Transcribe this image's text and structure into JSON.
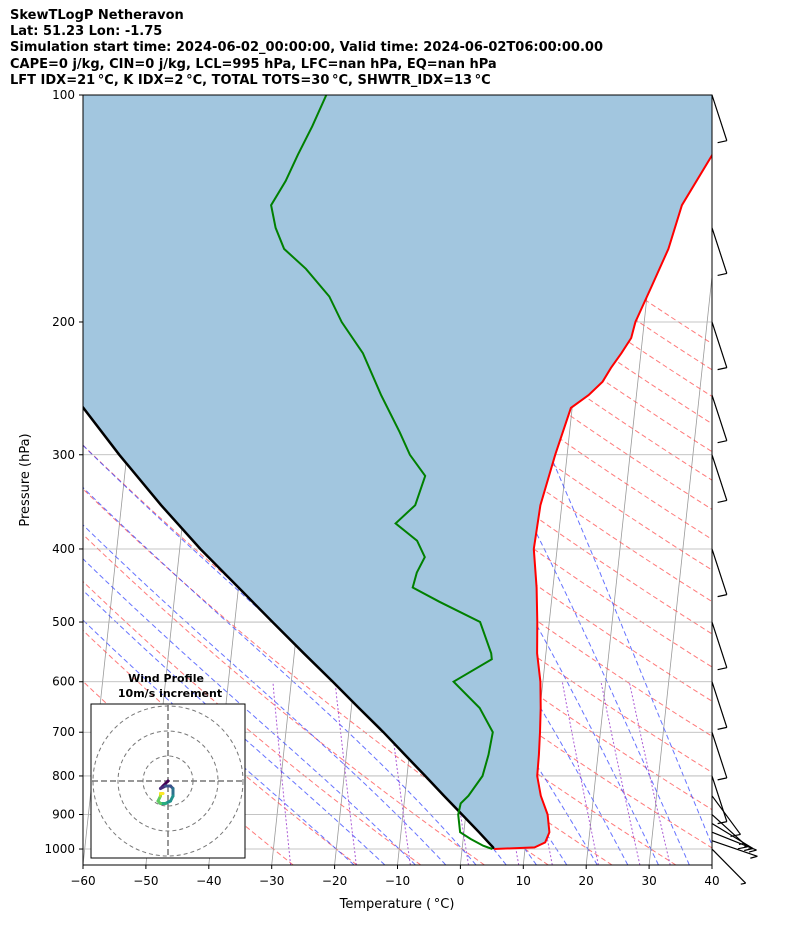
{
  "header": {
    "line1": "SkewTLogP Netheravon",
    "line2": "Lat: 51.23   Lon: -1.75",
    "line3": "Simulation start time: 2024-06-02_00:00:00, Valid time: 2024-06-02T06:00:00.00",
    "line4": "CAPE=0 j/kg, CIN=0 j/kg, LCL=995 hPa, LFC=nan hPa, EQ=nan hPa",
    "line5": "LFT IDX=21 °C, K IDX=2 °C, TOTAL TOTS=30 °C, SHWTR_IDX=13 °C"
  },
  "colors": {
    "temperature": "#ff0000",
    "dewpoint": "#008000",
    "parcel": "#000000",
    "fill": "#a2c6df",
    "dry_adiabat": "#ff4d4d",
    "moist_adiabat": "#3344ff",
    "mixing_ratio": "#9933cc",
    "isotherm": "#9a9a9a"
  },
  "chart_data": {
    "type": "line",
    "xlabel": "Temperature ( °C)",
    "ylabel": "Pressure (hPa)",
    "xlim": [
      -60,
      40
    ],
    "ylim": [
      1050,
      100
    ],
    "yscale": "log",
    "grid": true,
    "xticks": [
      "−60",
      "−50",
      "−40",
      "−30",
      "−20",
      "−10",
      "0",
      "10",
      "20",
      "30",
      "40"
    ],
    "yticks": [
      "100",
      "200",
      "300",
      "400",
      "500",
      "600",
      "700",
      "800",
      "900",
      "1000"
    ],
    "series": [
      {
        "role": "temperature",
        "points": [
          [
            1000,
            5.1
          ],
          [
            995,
            11.5
          ],
          [
            980,
            13.1
          ],
          [
            950,
            13.6
          ],
          [
            900,
            13.0
          ],
          [
            850,
            11.6
          ],
          [
            800,
            10.7
          ],
          [
            750,
            10.6
          ],
          [
            700,
            10.4
          ],
          [
            650,
            10.1
          ],
          [
            600,
            9.6
          ],
          [
            550,
            8.6
          ],
          [
            500,
            8.1
          ],
          [
            450,
            7.4
          ],
          [
            400,
            6.3
          ],
          [
            350,
            6.6
          ],
          [
            300,
            8.1
          ],
          [
            260,
            9.8
          ],
          [
            250,
            12.4
          ],
          [
            240,
            14.4
          ],
          [
            230,
            15.5
          ],
          [
            220,
            16.9
          ],
          [
            210,
            18.2
          ],
          [
            200,
            18.6
          ],
          [
            180,
            20.5
          ],
          [
            160,
            22.6
          ],
          [
            140,
            24.0
          ],
          [
            120,
            28.0
          ],
          [
            100,
            32.0
          ]
        ]
      },
      {
        "role": "dewpoint",
        "points": [
          [
            1000,
            4.8
          ],
          [
            990,
            3.3
          ],
          [
            970,
            1.2
          ],
          [
            950,
            -0.6
          ],
          [
            900,
            -1.2
          ],
          [
            870,
            -1.0
          ],
          [
            850,
            0.1
          ],
          [
            800,
            2.0
          ],
          [
            750,
            2.6
          ],
          [
            700,
            2.9
          ],
          [
            650,
            0.4
          ],
          [
            600,
            -4.2
          ],
          [
            560,
            1.5
          ],
          [
            550,
            1.3
          ],
          [
            500,
            -1.0
          ],
          [
            470,
            -7.8
          ],
          [
            450,
            -12.3
          ],
          [
            430,
            -11.9
          ],
          [
            410,
            -10.9
          ],
          [
            390,
            -12.4
          ],
          [
            370,
            -16.1
          ],
          [
            350,
            -13.3
          ],
          [
            320,
            -12.2
          ],
          [
            300,
            -15.0
          ],
          [
            280,
            -17.0
          ],
          [
            250,
            -20.6
          ],
          [
            220,
            -24.2
          ],
          [
            200,
            -28.1
          ],
          [
            185,
            -30.5
          ],
          [
            170,
            -34.7
          ],
          [
            160,
            -38.5
          ],
          [
            150,
            -40.2
          ],
          [
            140,
            -41.3
          ],
          [
            130,
            -39.4
          ],
          [
            120,
            -37.9
          ],
          [
            110,
            -36.1
          ],
          [
            100,
            -34.4
          ]
        ]
      },
      {
        "role": "parcel",
        "points": [
          [
            1000,
            5.0
          ],
          [
            995,
            4.9
          ],
          [
            950,
            2.4
          ],
          [
            900,
            -0.6
          ],
          [
            850,
            -3.8
          ],
          [
            800,
            -7.1
          ],
          [
            750,
            -10.7
          ],
          [
            700,
            -14.5
          ],
          [
            650,
            -18.8
          ],
          [
            600,
            -23.4
          ],
          [
            550,
            -28.5
          ],
          [
            500,
            -34.0
          ],
          [
            450,
            -40.0
          ],
          [
            400,
            -46.7
          ],
          [
            350,
            -53.7
          ],
          [
            300,
            -61.2
          ],
          [
            250,
            -69.5
          ],
          [
            200,
            -78.2
          ],
          [
            150,
            -87.6
          ],
          [
            100,
            -98.5
          ]
        ]
      }
    ],
    "wind_barbs": [
      {
        "p": 1000,
        "u": 4,
        "v": 2
      },
      {
        "p": 975,
        "u": 3,
        "v": 4
      },
      {
        "p": 950,
        "u": 5,
        "v": 6
      },
      {
        "p": 925,
        "u": 7,
        "v": 6
      },
      {
        "p": 900,
        "u": 7,
        "v": 4
      },
      {
        "p": 850,
        "u": 6,
        "v": 2
      },
      {
        "p": 800,
        "u": 6,
        "v": 0
      },
      {
        "p": 700,
        "u": 5,
        "v": 0
      },
      {
        "p": 600,
        "u": 5,
        "v": 0
      },
      {
        "p": 500,
        "u": 5,
        "v": 0
      },
      {
        "p": 400,
        "u": 5,
        "v": 0
      },
      {
        "p": 300,
        "u": 5,
        "v": 0
      },
      {
        "p": 250,
        "u": 5,
        "v": 0
      },
      {
        "p": 200,
        "u": 5,
        "v": 0
      },
      {
        "p": 150,
        "u": 5,
        "v": 0
      },
      {
        "p": 100,
        "u": 5,
        "v": 0
      }
    ],
    "inset": {
      "title": "Wind Profile",
      "subtitle": "10m/s increment",
      "ring_increment": 10,
      "rings": 3,
      "hodograph": [
        [
          0,
          0
        ],
        [
          -2,
          -2
        ],
        [
          -3,
          -3
        ],
        [
          -1,
          -2
        ],
        [
          1,
          -2
        ],
        [
          2,
          -3
        ],
        [
          2,
          -6
        ],
        [
          1,
          -8
        ],
        [
          -1,
          -9
        ],
        [
          -3,
          -9
        ],
        [
          -4,
          -8
        ],
        [
          -3,
          -6
        ],
        [
          -3,
          -5
        ],
        [
          -2,
          -5
        ]
      ]
    }
  }
}
